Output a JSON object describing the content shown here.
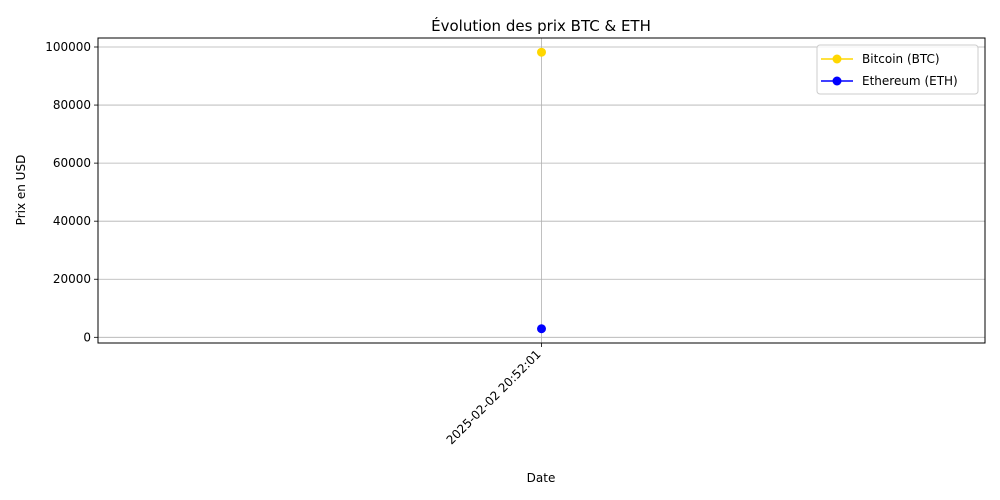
{
  "chart_data": {
    "type": "line",
    "title": "Évolution des prix BTC & ETH",
    "xlabel": "Date",
    "ylabel": "Prix en USD",
    "x": [
      "2025-02-02 20:52:01"
    ],
    "series": [
      {
        "name": "Bitcoin (BTC)",
        "color": "#FFD700",
        "values": [
          98200
        ]
      },
      {
        "name": "Ethereum (ETH)",
        "color": "#0000FF",
        "values": [
          2950
        ]
      }
    ],
    "y_ticks": [
      0,
      20000,
      40000,
      60000,
      80000,
      100000
    ],
    "ylim": [
      -1960,
      103100
    ],
    "grid": true,
    "legend": "top-right",
    "marker": "circle"
  }
}
